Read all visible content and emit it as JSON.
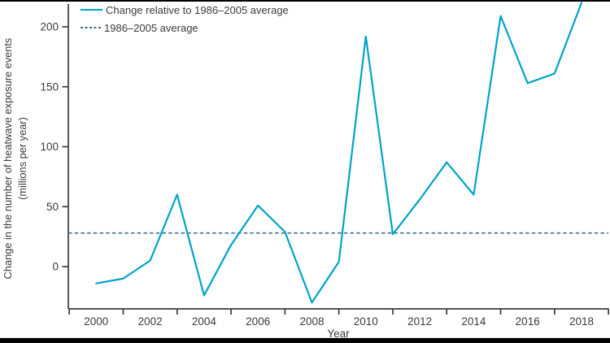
{
  "chart_data": {
    "type": "line",
    "title": "",
    "xlabel": "Year",
    "ylabel_line1": "Change in the number of heatwave exposure events",
    "ylabel_line2": "(millions per year)",
    "x": [
      2000,
      2001,
      2002,
      2003,
      2004,
      2005,
      2006,
      2007,
      2008,
      2009,
      2010,
      2011,
      2012,
      2013,
      2014,
      2015,
      2016,
      2017,
      2018
    ],
    "series": [
      {
        "name": "Change relative to 1986–2005 average",
        "values": [
          -14,
          -10,
          5,
          60,
          -24,
          18,
          51,
          29,
          -30,
          4,
          192,
          27,
          56,
          87,
          60,
          209,
          153,
          161,
          220
        ]
      }
    ],
    "average_line": {
      "label": "1986–2005 average",
      "value": 28
    },
    "yticks": [
      0,
      50,
      100,
      150,
      200
    ],
    "xtick_labels": [
      2000,
      2002,
      2004,
      2006,
      2008,
      2010,
      2012,
      2014,
      2016,
      2018
    ],
    "xtick_marks": [
      1999,
      2001,
      2003,
      2005,
      2007,
      2009,
      2011,
      2013,
      2015,
      2017,
      2019
    ],
    "xlim": [
      1999,
      2019
    ],
    "ylim": [
      -35,
      221
    ],
    "grid": false,
    "legend_position": "top-left",
    "legend": [
      "Change relative to 1986–2005 average",
      "1986–2005 average"
    ],
    "colors": {
      "series_line": "#00a3c7",
      "average_line": "#41708d",
      "axis": "#3b3b3b",
      "text": "#3b3b3b",
      "background": "#ffffff",
      "frame_bars": "#000000"
    }
  }
}
